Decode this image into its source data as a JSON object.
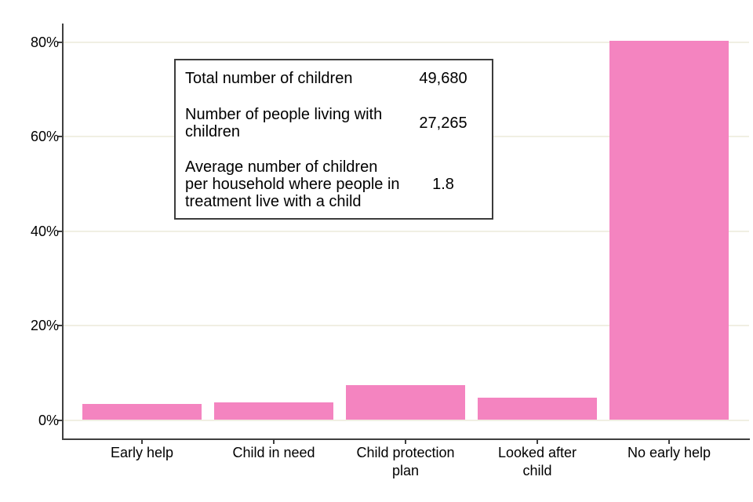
{
  "chart_data": {
    "type": "bar",
    "title": "",
    "xlabel": "",
    "ylabel": "",
    "categories": [
      "Early help",
      "Child in need",
      "Child protection plan",
      "Looked after child",
      "No early help"
    ],
    "category_lines": [
      [
        "Early help"
      ],
      [
        "Child in need"
      ],
      [
        "Child protection",
        "plan"
      ],
      [
        "Looked after",
        "child"
      ],
      [
        "No early help"
      ]
    ],
    "values": [
      3.4,
      3.8,
      7.4,
      4.8,
      80.3
    ],
    "value_unit": "%",
    "ylim": [
      0,
      84
    ],
    "yticks": [
      {
        "value": 0,
        "label": "0%"
      },
      {
        "value": 20,
        "label": "20%"
      },
      {
        "value": 40,
        "label": "40%"
      },
      {
        "value": 60,
        "label": "60%"
      },
      {
        "value": 80,
        "label": "80%"
      }
    ],
    "grid": true,
    "legend": "none",
    "bar_color": "#f484c0",
    "gridline_color": "#f0efe3",
    "axis_color": "#3f3f3f"
  },
  "info_box": {
    "rows": [
      {
        "label": "Total number of children",
        "value": "49,680"
      },
      {
        "label": "Number of people living with children",
        "value": "27,265"
      },
      {
        "label": "Average number of children per household where people in treatment live with a child",
        "value": "1.8"
      }
    ]
  }
}
